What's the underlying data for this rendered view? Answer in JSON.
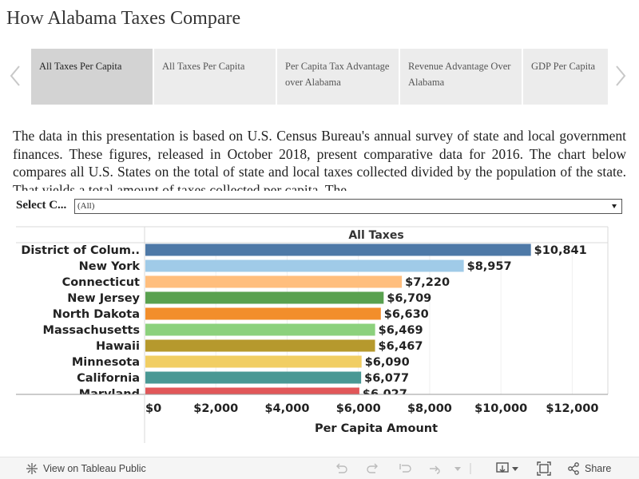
{
  "page": {
    "title": "How Alabama Taxes Compare"
  },
  "tabs": [
    {
      "label": "All Taxes Per Capita",
      "active": true
    },
    {
      "label": "All Taxes Per Capita",
      "active": false
    },
    {
      "label": "Per Capita Tax Advantage over Alabama",
      "active": false
    },
    {
      "label": "Revenue Advantage Over Alabama",
      "active": false
    },
    {
      "label": "GDP Per Capita",
      "active": false
    }
  ],
  "description": "The data in this presentation is based on U.S. Census Bureau's annual survey of state and local government finances. These figures, released in October 2018, present comparative data for 2016. The chart below compares all U.S. States on the total of state and local taxes collected divided by the population of the state. That yields a total amount of taxes collected per capita. The",
  "filter": {
    "label": "Select C...",
    "value": "(All)"
  },
  "chart_data": {
    "type": "bar",
    "orientation": "horizontal",
    "title": "All Taxes",
    "xlabel": "Per Capita Amount",
    "ylabel": "",
    "xlim": [
      0,
      13000
    ],
    "x_ticks": [
      "$0",
      "$2,000",
      "$4,000",
      "$6,000",
      "$8,000",
      "$10,000",
      "$12,000"
    ],
    "x_tick_values": [
      0,
      2000,
      4000,
      6000,
      8000,
      10000,
      12000
    ],
    "categories": [
      "District of Colum..",
      "New York",
      "Connecticut",
      "New Jersey",
      "North Dakota",
      "Massachusetts",
      "Hawaii",
      "Minnesota",
      "California",
      "Maryland"
    ],
    "values": [
      10841,
      8957,
      7220,
      6709,
      6630,
      6469,
      6467,
      6090,
      6077,
      6027
    ],
    "value_labels": [
      "$10,841",
      "$8,957",
      "$7,220",
      "$6,709",
      "$6,630",
      "$6,469",
      "$6,467",
      "$6,090",
      "$6,077",
      "$6,027"
    ],
    "colors": [
      "#4e79a7",
      "#a0cbe8",
      "#ffbe7d",
      "#59a14f",
      "#f28e2b",
      "#8cd17d",
      "#b6992d",
      "#f1ce63",
      "#499894",
      "#e15759"
    ],
    "grid": true,
    "legend": "none"
  },
  "footer": {
    "view_label": "View on Tableau Public",
    "share_label": "Share"
  }
}
